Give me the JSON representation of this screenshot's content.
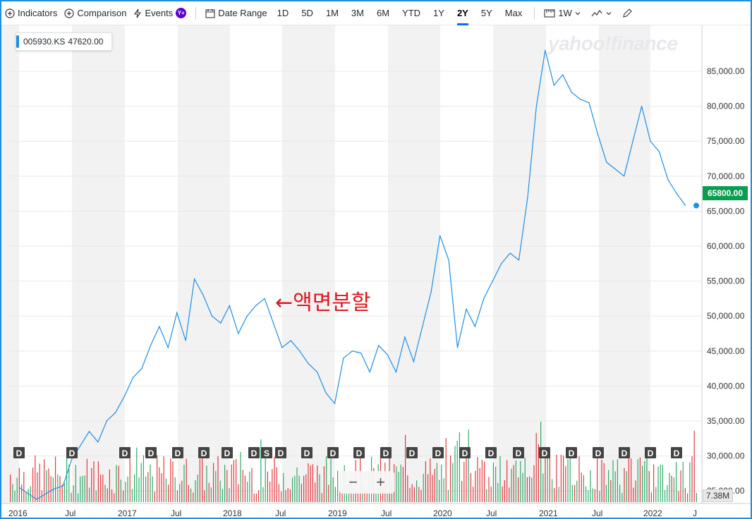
{
  "toolbar": {
    "indicators": "Indicators",
    "comparison": "Comparison",
    "events": "Events",
    "events_badge": "Y+",
    "date_range": "Date Range",
    "ranges": [
      "1D",
      "5D",
      "1M",
      "3M",
      "6M",
      "YTD",
      "1Y",
      "2Y",
      "5Y",
      "Max"
    ],
    "active_range": "2Y",
    "interval": "1W"
  },
  "legend": {
    "symbol": "005930.KS",
    "value": "47620.00"
  },
  "watermark": "yahoo!finance",
  "annotation": "←액면분할",
  "current_price": "65800.00",
  "current_volume": "7.38M",
  "zoom": {
    "minus": "−",
    "plus": "+"
  },
  "colors": {
    "line": "#1f8fe5",
    "up": "#0a9d50",
    "down": "#e0171f",
    "band": "#f2f2f2",
    "accent": "#0f69ff"
  },
  "chart_data": {
    "type": "line",
    "series": [
      {
        "name": "005930.KS",
        "x": [
          "2016-01",
          "2016-03",
          "2016-05",
          "2016-06",
          "2016-07",
          "2016-08",
          "2016-09",
          "2016-10",
          "2016-11",
          "2016-12",
          "2017-01",
          "2017-02",
          "2017-03",
          "2017-04",
          "2017-05",
          "2017-06",
          "2017-07",
          "2017-08",
          "2017-09",
          "2017-10",
          "2017-11",
          "2017-12",
          "2018-01",
          "2018-02",
          "2018-03",
          "2018-04",
          "2018-05",
          "2018-06",
          "2018-07",
          "2018-08",
          "2018-09",
          "2018-10",
          "2018-11",
          "2018-12",
          "2019-01",
          "2019-02",
          "2019-03",
          "2019-04",
          "2019-05",
          "2019-06",
          "2019-07",
          "2019-08",
          "2019-09",
          "2019-10",
          "2019-11",
          "2019-12",
          "2020-01",
          "2020-02",
          "2020-03",
          "2020-04",
          "2020-05",
          "2020-06",
          "2020-07",
          "2020-08",
          "2020-09",
          "2020-10",
          "2020-11",
          "2020-12",
          "2021-01",
          "2021-02",
          "2021-03",
          "2021-04",
          "2021-05",
          "2021-06",
          "2021-07",
          "2021-08",
          "2021-09",
          "2021-10",
          "2021-11",
          "2021-12",
          "2022-01",
          "2022-02",
          "2022-03",
          "2022-04",
          "2022-05"
        ],
        "values": [
          25500,
          23800,
          25300,
          25700,
          29500,
          31500,
          33500,
          32000,
          35000,
          36200,
          38500,
          41200,
          42500,
          45800,
          48500,
          45500,
          50500,
          46500,
          55300,
          53000,
          50000,
          49000,
          51500,
          47500,
          50000,
          51500,
          52500,
          49000,
          45500,
          46500,
          45000,
          43200,
          42000,
          39000,
          37500,
          44000,
          45000,
          44700,
          42000,
          45800,
          44500,
          42000,
          47000,
          43500,
          48500,
          53500,
          61500,
          58000,
          45500,
          51000,
          48500,
          52500,
          55000,
          57500,
          59000,
          58000,
          67000,
          80000,
          88000,
          83000,
          84500,
          82000,
          81000,
          80500,
          76000,
          72000,
          71000,
          70000,
          75000,
          80000,
          75000,
          73500,
          69500,
          67500,
          65800
        ]
      }
    ],
    "volume_series": {
      "name": "Volume",
      "note_type": "bar",
      "last": "7.38M"
    },
    "x_tick_labels": [
      "2016",
      "Jul",
      "2017",
      "Jul",
      "2018",
      "Jul",
      "2019",
      "Jul",
      "2020",
      "Jul",
      "2021",
      "Jul",
      "2022",
      "J"
    ],
    "y_tick_labels": [
      "25,000.00",
      "30,000.00",
      "35,000.00",
      "40,000.00",
      "45,000.00",
      "50,000.00",
      "55,000.00",
      "60,000.00",
      "65,000.00",
      "70,000.00",
      "75,000.00",
      "80,000.00",
      "85,000.00"
    ],
    "ylim": [
      22000,
      89000
    ],
    "event_markers": [
      "D",
      "D",
      "D",
      "D",
      "D",
      "D",
      "D",
      "D",
      "S",
      "D",
      "D",
      "D",
      "D",
      "D",
      "D",
      "D",
      "D",
      "D",
      "D",
      "D",
      "D",
      "D",
      "D",
      "D",
      "D",
      "D"
    ],
    "grid": true
  }
}
